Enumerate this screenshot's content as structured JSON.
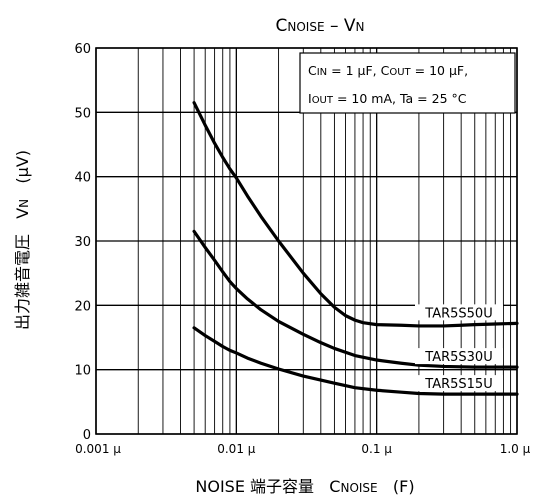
{
  "chart_data": {
    "type": "line",
    "title": {
      "main": "C",
      "main_sub": "NOISE",
      "separator": " – ",
      "tail": "V",
      "tail_sub": "N"
    },
    "xaxis": {
      "scale": "log",
      "range": [
        0.001,
        1.0
      ],
      "tick_values": [
        0.001,
        0.01,
        0.1,
        1.0
      ],
      "tick_labels": [
        "0.001 μ",
        "0.01 μ",
        "0.1 μ",
        "1.0 μ"
      ],
      "label": {
        "prefix": "NOISE 端子容量",
        "sym": "C",
        "sym_sub": "NOISE",
        "unit": "(F)"
      }
    },
    "yaxis": {
      "scale": "linear",
      "range": [
        0,
        60
      ],
      "tick_values": [
        0,
        10,
        20,
        30,
        40,
        50,
        60
      ],
      "tick_labels": [
        "0",
        "10",
        "20",
        "30",
        "40",
        "50",
        "60"
      ],
      "label": {
        "prefix": "出力雑音電圧",
        "sym": "V",
        "sym_sub": "N",
        "unit": "(μV)"
      }
    },
    "grid": true,
    "annotation": {
      "line1": [
        {
          "text": "C"
        },
        {
          "text": "IN",
          "sub": true
        },
        {
          "text": " = 1 μF, C"
        },
        {
          "text": "OUT",
          "sub": true
        },
        {
          "text": " = 10 μF,"
        }
      ],
      "line2": [
        {
          "text": "I"
        },
        {
          "text": "OUT",
          "sub": true
        },
        {
          "text": " = 10 mA, Ta = 25 °C"
        }
      ]
    },
    "series": [
      {
        "name": "TAR5S50U",
        "x": [
          0.005,
          0.006,
          0.007,
          0.008,
          0.009,
          0.01,
          0.012,
          0.015,
          0.02,
          0.03,
          0.04,
          0.05,
          0.06,
          0.07,
          0.08,
          0.1,
          0.15,
          0.2,
          0.25,
          0.3,
          0.4,
          0.5,
          0.7,
          1.0
        ],
        "y": [
          51.5,
          48.0,
          45.2,
          43.0,
          41.2,
          39.8,
          37.0,
          33.8,
          30.0,
          25.0,
          21.8,
          19.7,
          18.4,
          17.7,
          17.3,
          17.0,
          16.9,
          16.8,
          16.8,
          16.8,
          16.9,
          17.0,
          17.1,
          17.2
        ]
      },
      {
        "name": "TAR5S30U",
        "x": [
          0.005,
          0.006,
          0.007,
          0.008,
          0.009,
          0.01,
          0.012,
          0.015,
          0.02,
          0.03,
          0.04,
          0.05,
          0.07,
          0.1,
          0.15,
          0.2,
          0.3,
          0.5,
          0.7,
          1.0
        ],
        "y": [
          31.5,
          29.0,
          27.0,
          25.2,
          23.7,
          22.6,
          21.0,
          19.3,
          17.5,
          15.5,
          14.2,
          13.3,
          12.2,
          11.5,
          11.0,
          10.7,
          10.5,
          10.4,
          10.4,
          10.4
        ]
      },
      {
        "name": "TAR5S15U",
        "x": [
          0.005,
          0.006,
          0.007,
          0.008,
          0.009,
          0.01,
          0.012,
          0.015,
          0.02,
          0.03,
          0.05,
          0.07,
          0.1,
          0.15,
          0.2,
          0.3,
          0.5,
          0.7,
          1.0
        ],
        "y": [
          16.5,
          15.3,
          14.4,
          13.6,
          13.0,
          12.6,
          11.8,
          11.0,
          10.1,
          9.0,
          7.9,
          7.2,
          6.8,
          6.5,
          6.3,
          6.2,
          6.2,
          6.2,
          6.2
        ]
      }
    ]
  }
}
